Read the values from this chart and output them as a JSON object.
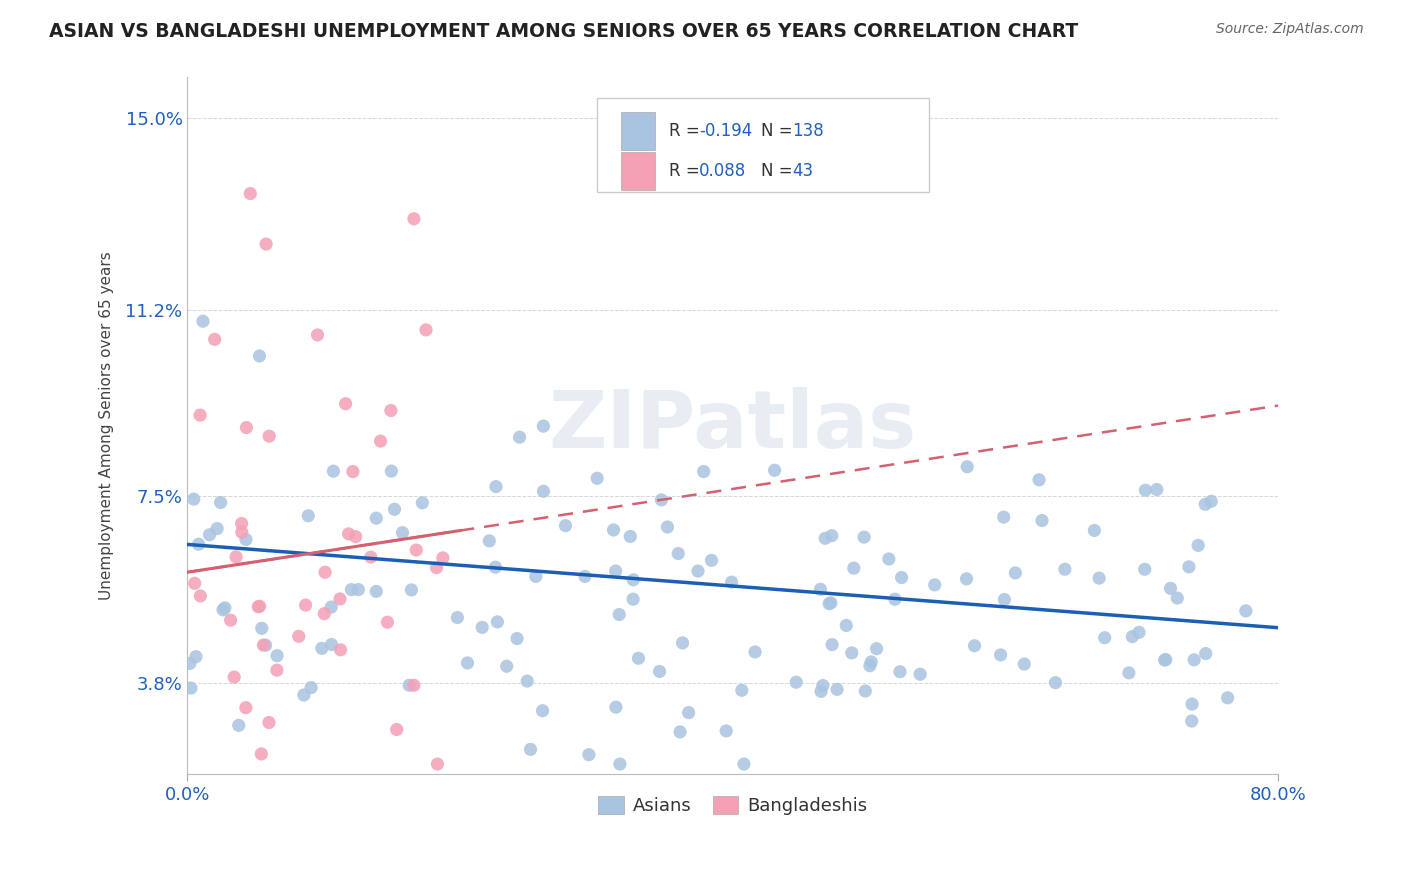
{
  "title": "ASIAN VS BANGLADESHI UNEMPLOYMENT AMONG SENIORS OVER 65 YEARS CORRELATION CHART",
  "source": "Source: ZipAtlas.com",
  "ylabel": "Unemployment Among Seniors over 65 years",
  "xlim": [
    0.0,
    0.8
  ],
  "ylim": [
    0.02,
    0.158
  ],
  "xticklabels": [
    "0.0%",
    "80.0%"
  ],
  "ytick_positions": [
    0.038,
    0.075,
    0.112,
    0.15
  ],
  "ytick_labels": [
    "3.8%",
    "7.5%",
    "11.2%",
    "15.0%"
  ],
  "asian_color": "#a8c4e0",
  "bangladeshi_color": "#f4a0b5",
  "asian_line_color": "#1a5fb4",
  "bangladeshi_line_color": "#d46070",
  "watermark": "ZIPatlas",
  "legend_R_asian": "-0.194",
  "legend_N_asian": "138",
  "legend_R_bangladeshi": "0.088",
  "legend_N_bangladeshi": "43",
  "grid_color": "#cccccc",
  "background_color": "#ffffff",
  "asian_R": -0.194,
  "asian_N": 138,
  "bangladeshi_R": 0.088,
  "bangladeshi_N": 43,
  "asian_trend_start_y": 0.0655,
  "asian_trend_end_y": 0.049,
  "bang_trend_start_y": 0.06,
  "bang_trend_end_y": 0.093
}
